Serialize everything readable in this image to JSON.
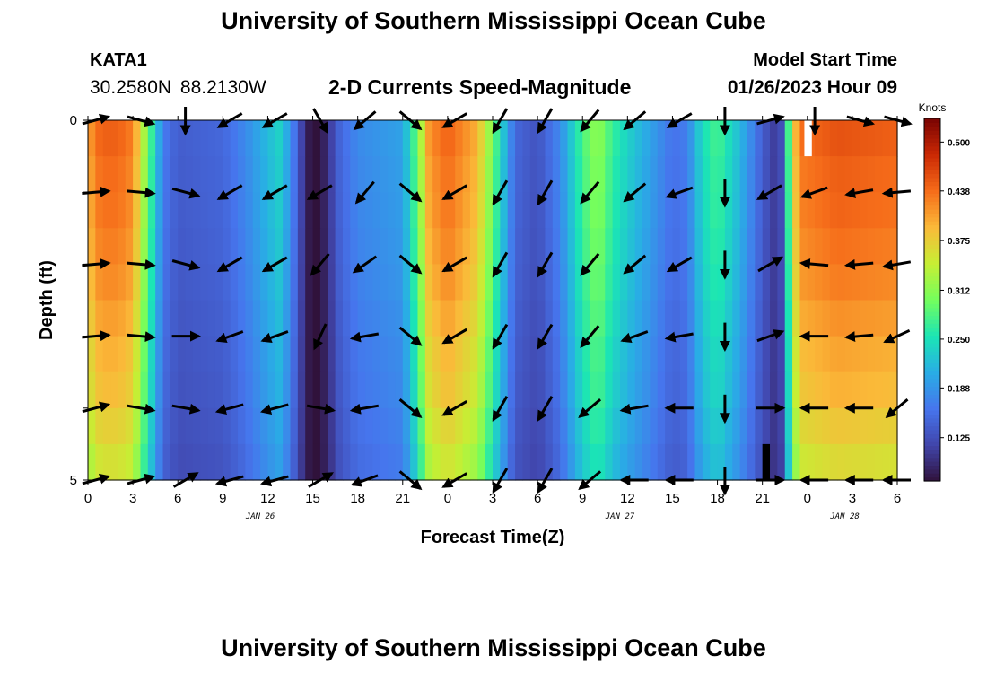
{
  "page": {
    "title": "University of Southern Mississippi Ocean Cube",
    "title_repeat": "University of Southern Mississippi Ocean Cube",
    "station": "KATA1",
    "coordinates": "30.2580N 88.2130W",
    "subtitle": "2-D Currents Speed-Magnitude",
    "model_start_label": "Model Start Time",
    "model_start_value": "01/26/2023 Hour 09"
  },
  "chart_data": {
    "type": "heatmap",
    "title": "2-D Currents Speed-Magnitude",
    "xlabel": "Forecast Time(Z)",
    "ylabel": "Depth (ft)",
    "x_start_hour": 0,
    "x_end_hour": 54,
    "x_tick_hours": [
      0,
      3,
      6,
      9,
      12,
      15,
      18,
      21,
      24,
      27,
      30,
      33,
      36,
      39,
      42,
      45,
      48,
      51,
      54
    ],
    "x_tick_labels": [
      "0",
      "3",
      "6",
      "9",
      "12",
      "15",
      "18",
      "21",
      "0",
      "3",
      "6",
      "9",
      "12",
      "15",
      "18",
      "21",
      "0",
      "3",
      "6"
    ],
    "date_labels": [
      {
        "text": "JAN 26",
        "hour": 11.5
      },
      {
        "text": "JAN 27",
        "hour": 35.5
      },
      {
        "text": "JAN 28",
        "hour": 50.5
      }
    ],
    "y_range": [
      0,
      5
    ],
    "y_tick_labels": [
      {
        "value": 0,
        "text": "0"
      },
      {
        "value": 5,
        "text": "5"
      }
    ],
    "depth_levels": [
      0,
      0.5,
      1,
      1.5,
      2,
      2.5,
      3,
      3.5,
      4,
      4.5
    ],
    "colorbar": {
      "unit": "Knots",
      "min": 0.07,
      "max": 0.53,
      "tick_values": [
        0.5,
        0.438,
        0.375,
        0.312,
        0.25,
        0.188,
        0.125
      ],
      "tick_labels": [
        "0.500",
        "0.438",
        "0.375",
        "0.312",
        "0.250",
        "0.188",
        "0.125"
      ]
    },
    "speed_profile": [
      [
        0,
        0.4
      ],
      [
        0.5,
        0.44
      ],
      [
        1,
        0.45
      ],
      [
        2,
        0.45
      ],
      [
        3,
        0.43
      ],
      [
        4,
        0.3
      ],
      [
        4.5,
        0.24
      ],
      [
        5,
        0.17
      ],
      [
        6,
        0.14
      ],
      [
        9,
        0.15
      ],
      [
        10.5,
        0.18
      ],
      [
        12,
        0.22
      ],
      [
        12.8,
        0.24
      ],
      [
        13.5,
        0.19
      ],
      [
        14.2,
        0.12
      ],
      [
        14.7,
        0.08
      ],
      [
        15.3,
        0.06
      ],
      [
        16.0,
        0.1
      ],
      [
        16.8,
        0.15
      ],
      [
        18,
        0.18
      ],
      [
        21,
        0.2
      ],
      [
        22,
        0.3
      ],
      [
        22.8,
        0.42
      ],
      [
        24,
        0.45
      ],
      [
        26,
        0.4
      ],
      [
        27,
        0.3
      ],
      [
        28.5,
        0.15
      ],
      [
        30,
        0.13
      ],
      [
        31.5,
        0.18
      ],
      [
        33,
        0.28
      ],
      [
        34,
        0.32
      ],
      [
        35,
        0.27
      ],
      [
        36,
        0.24
      ],
      [
        37.5,
        0.2
      ],
      [
        39,
        0.16
      ],
      [
        40,
        0.17
      ],
      [
        41,
        0.25
      ],
      [
        42,
        0.28
      ],
      [
        43.5,
        0.22
      ],
      [
        45,
        0.14
      ],
      [
        45.8,
        0.11
      ],
      [
        46.4,
        0.13
      ],
      [
        46.9,
        0.34
      ],
      [
        47.5,
        0.44
      ],
      [
        50,
        0.46
      ],
      [
        54,
        0.45
      ]
    ],
    "depth_falloff": [
      0.99,
      0.97,
      0.96,
      0.94,
      0.92,
      0.89,
      0.86,
      0.84,
      0.8,
      0.76
    ],
    "arrow_hours": [
      0.5,
      3.5,
      6.5,
      9.5,
      12.5,
      15.5,
      18.5,
      21.5,
      24.5,
      27.5,
      30.5,
      33.5,
      36.5,
      39.5,
      42.5,
      45.5,
      48.5,
      51.5,
      54.0
    ],
    "arrow_depths": [
      0,
      1,
      2,
      3,
      4,
      5
    ],
    "arrow_directions_deg": [
      [
        -15,
        15,
        90,
        150,
        150,
        60,
        140,
        40,
        150,
        120,
        120,
        130,
        140,
        150,
        90,
        -15,
        90,
        15,
        15
      ],
      [
        -5,
        5,
        15,
        150,
        150,
        150,
        130,
        40,
        150,
        120,
        120,
        130,
        140,
        160,
        90,
        150,
        160,
        170,
        175
      ],
      [
        -5,
        5,
        15,
        150,
        150,
        130,
        145,
        40,
        150,
        120,
        120,
        130,
        140,
        150,
        90,
        -30,
        185,
        175,
        170
      ],
      [
        -5,
        5,
        0,
        160,
        160,
        115,
        170,
        40,
        150,
        120,
        120,
        130,
        160,
        170,
        90,
        -20,
        180,
        175,
        155
      ],
      [
        -15,
        10,
        10,
        165,
        165,
        10,
        170,
        40,
        150,
        120,
        120,
        140,
        170,
        180,
        90,
        0,
        180,
        180,
        140
      ],
      [
        -15,
        -15,
        -30,
        165,
        165,
        -30,
        160,
        40,
        150,
        120,
        120,
        140,
        180,
        180,
        90,
        0,
        180,
        180,
        180
      ]
    ],
    "masked_cells": [
      {
        "hour_start": 47.8,
        "hour_end": 48.3,
        "depth_start": 0,
        "depth_end": 0.5,
        "color": "#ffffff"
      },
      {
        "hour_start": 45.0,
        "hour_end": 45.5,
        "depth_start": 4.5,
        "depth_end": 5,
        "color": "#000000"
      }
    ]
  }
}
